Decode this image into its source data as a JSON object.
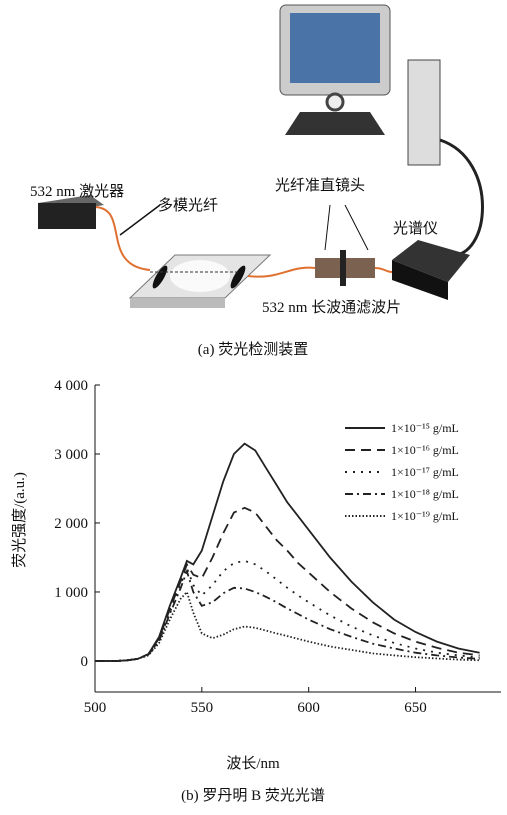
{
  "diagram": {
    "labels": {
      "laser": "532 nm 激光器",
      "fiber": "多模光纤",
      "collimator": "光纤准直镜头",
      "spectrometer": "光谱仪",
      "filter": "532 nm 长波通滤波片"
    },
    "caption": "(a) 荧光检测装置"
  },
  "chart_data": {
    "type": "line",
    "caption": "(b) 罗丹明 B 荧光光谱",
    "x_label": "波长/nm",
    "y_label": "荧光强度/(a.u.)",
    "xlim": [
      500,
      690
    ],
    "xticks": [
      500,
      550,
      600,
      650
    ],
    "ylim": [
      -450,
      4000
    ],
    "yticks": [
      0,
      {
        "value": 1000,
        "label": "1 000"
      },
      {
        "value": 2000,
        "label": "2 000"
      },
      {
        "value": 3000,
        "label": "3 000"
      },
      {
        "value": 4000,
        "label": "4 000"
      }
    ],
    "x": [
      500,
      505,
      510,
      515,
      520,
      525,
      530,
      535,
      540,
      543,
      546,
      550,
      555,
      560,
      565,
      570,
      575,
      580,
      585,
      590,
      595,
      600,
      610,
      620,
      630,
      640,
      650,
      660,
      670,
      680
    ],
    "series": [
      {
        "name": "1×10⁻¹⁵ g/mL",
        "color": "#222222",
        "dash": "none",
        "values": [
          0,
          0,
          0,
          10,
          30,
          100,
          350,
          800,
          1200,
          1450,
          1400,
          1600,
          2100,
          2600,
          3000,
          3150,
          3050,
          2800,
          2550,
          2300,
          2100,
          1900,
          1500,
          1150,
          850,
          600,
          420,
          280,
          180,
          120
        ]
      },
      {
        "name": "1×10⁻¹⁶ g/mL",
        "color": "#222222",
        "dash": "10,6",
        "values": [
          0,
          0,
          0,
          10,
          30,
          100,
          330,
          750,
          1150,
          1400,
          1250,
          1200,
          1500,
          1850,
          2150,
          2220,
          2150,
          1950,
          1750,
          1600,
          1420,
          1280,
          1000,
          760,
          560,
          400,
          280,
          190,
          120,
          80
        ]
      },
      {
        "name": "1×10⁻¹⁷ g/mL",
        "color": "#222222",
        "dash": "2,6",
        "values": [
          0,
          0,
          0,
          10,
          30,
          90,
          300,
          700,
          1100,
          1350,
          1100,
          950,
          1100,
          1300,
          1420,
          1450,
          1400,
          1300,
          1180,
          1060,
          950,
          850,
          660,
          500,
          370,
          260,
          180,
          120,
          80,
          50
        ]
      },
      {
        "name": "1×10⁻¹⁸ g/mL",
        "color": "#222222",
        "dash": "8,4,2,4",
        "values": [
          0,
          0,
          0,
          10,
          30,
          90,
          290,
          680,
          1050,
          1300,
          1000,
          800,
          850,
          980,
          1060,
          1050,
          1000,
          930,
          850,
          760,
          680,
          600,
          460,
          350,
          250,
          180,
          120,
          80,
          50,
          30
        ]
      },
      {
        "name": "1×10⁻¹⁹ g/mL",
        "color": "#222222",
        "dash": "1.5,2",
        "values": [
          0,
          0,
          0,
          10,
          30,
          80,
          260,
          600,
          900,
          1000,
          700,
          400,
          330,
          380,
          460,
          500,
          480,
          440,
          400,
          360,
          320,
          280,
          210,
          160,
          110,
          80,
          55,
          35,
          20,
          10
        ]
      }
    ]
  }
}
